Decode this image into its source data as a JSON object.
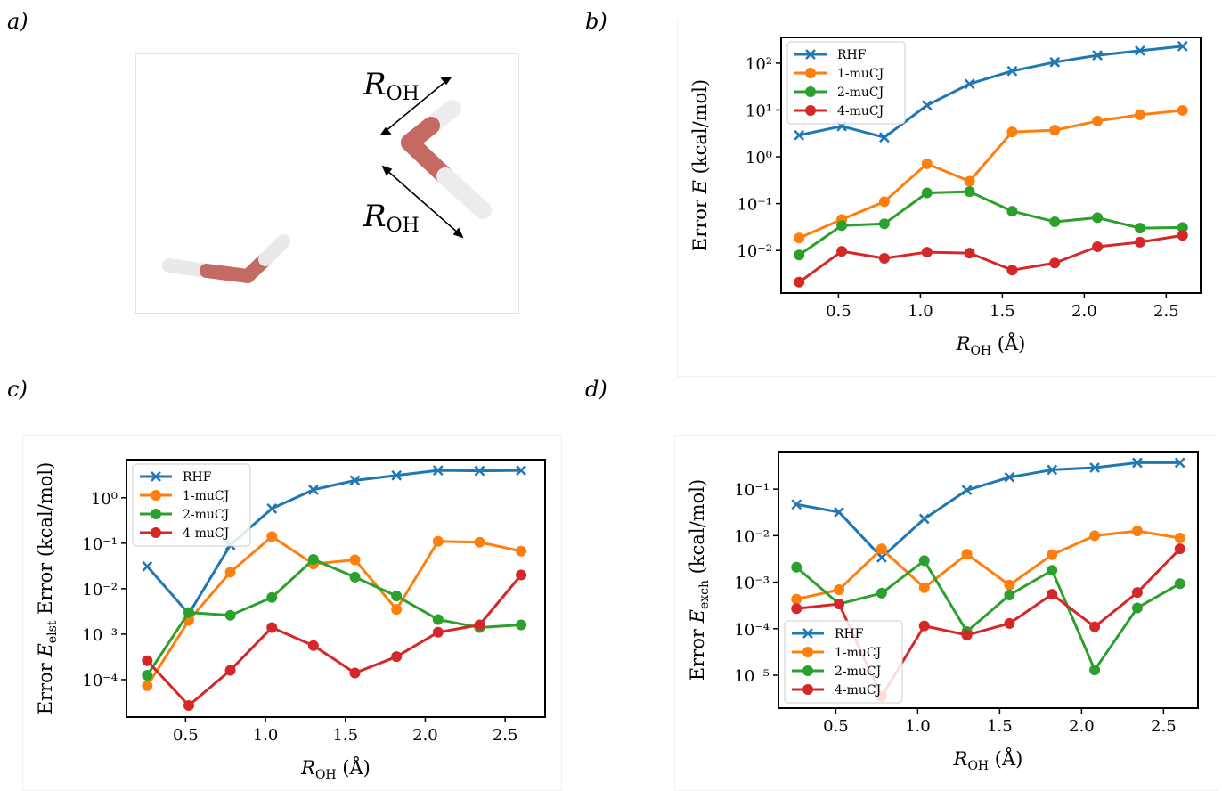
{
  "diagram": {
    "panel_label": "a)",
    "labels": [
      {
        "symbol": "R",
        "subscript": "OH"
      },
      {
        "symbol": "R",
        "subscript": "OH"
      }
    ]
  },
  "chart_data": [
    {
      "type": "line",
      "panel_label": "b)",
      "yscale": "log",
      "legend": "upper left",
      "x": [
        0.26,
        0.52,
        0.78,
        1.04,
        1.3,
        1.56,
        1.82,
        2.08,
        2.34,
        2.6
      ],
      "xlim": [
        0.15,
        2.71
      ],
      "xticks": [
        0.5,
        {
          "value": 1,
          "label": "1.0"
        },
        1.5,
        {
          "value": 2,
          "label": "2.0"
        },
        2.5
      ],
      "ylim": [
        0.00123,
        355
      ],
      "yticks": [
        {
          "value": 0.01,
          "label": "10⁻²"
        },
        {
          "value": 0.1,
          "label": "10⁻¹"
        },
        {
          "value": 1,
          "label": "10⁰"
        },
        {
          "value": 10,
          "label": "10¹"
        },
        {
          "value": 100,
          "label": "10²"
        }
      ],
      "xlabel": {
        "symbol": "R",
        "subscript": "OH",
        "suffix": " (Å)"
      },
      "ylabel": {
        "prefix": "Error ",
        "symbol": "E",
        "suffix": " (kcal/mol)"
      },
      "series": [
        {
          "name": "RHF",
          "color": "#1f77b4",
          "marker": "x",
          "values": [
            2.9,
            4.5,
            2.6,
            12.6,
            36,
            68,
            105,
            147,
            185,
            230
          ]
        },
        {
          "name": "1-muCJ",
          "color": "#ff7f0e",
          "marker": "o",
          "values": [
            0.0185,
            0.046,
            0.11,
            0.71,
            0.3,
            3.4,
            3.7,
            5.8,
            7.9,
            9.8
          ]
        },
        {
          "name": "2-muCJ",
          "color": "#2ca02c",
          "marker": "o",
          "values": [
            0.008,
            0.034,
            0.037,
            0.17,
            0.18,
            0.069,
            0.041,
            0.05,
            0.03,
            0.031
          ]
        },
        {
          "name": "4-muCJ",
          "color": "#d62728",
          "marker": "o",
          "values": [
            0.0021,
            0.0096,
            0.0068,
            0.0092,
            0.0088,
            0.0038,
            0.0054,
            0.012,
            0.015,
            0.021
          ]
        }
      ]
    },
    {
      "type": "line",
      "panel_label": "c)",
      "yscale": "log",
      "legend": "upper left",
      "x": [
        0.26,
        0.52,
        0.78,
        1.04,
        1.3,
        1.56,
        1.82,
        2.08,
        2.34,
        2.6
      ],
      "xlim": [
        0.13,
        2.75
      ],
      "xticks": [
        0.5,
        {
          "value": 1,
          "label": "1.0"
        },
        1.5,
        {
          "value": 2,
          "label": "2.0"
        },
        2.5
      ],
      "ylim": [
        1.5e-05,
        6.9
      ],
      "yticks": [
        {
          "value": 0.0001,
          "label": "10⁻⁴"
        },
        {
          "value": 0.001,
          "label": "10⁻³"
        },
        {
          "value": 0.01,
          "label": "10⁻²"
        },
        {
          "value": 0.1,
          "label": "10⁻¹"
        },
        {
          "value": 1,
          "label": "10⁰"
        }
      ],
      "xlabel": {
        "symbol": "R",
        "subscript": "OH",
        "suffix": " (Å)"
      },
      "ylabel": {
        "prefix": "Error ",
        "symbol": "E",
        "subscript": "elst",
        "suffix": " Error (kcal/mol)"
      },
      "series": [
        {
          "name": "RHF",
          "color": "#1f77b4",
          "marker": "x",
          "values": [
            0.031,
            0.0028,
            0.091,
            0.58,
            1.5,
            2.4,
            3.1,
            4.0,
            3.9,
            4.0
          ]
        },
        {
          "name": "1-muCJ",
          "color": "#ff7f0e",
          "marker": "o",
          "values": [
            7.3e-05,
            0.002,
            0.023,
            0.14,
            0.035,
            0.043,
            0.0035,
            0.11,
            0.105,
            0.067
          ]
        },
        {
          "name": "2-muCJ",
          "color": "#2ca02c",
          "marker": "o",
          "values": [
            0.000125,
            0.003,
            0.0026,
            0.0064,
            0.044,
            0.018,
            0.0069,
            0.0021,
            0.0014,
            0.0016
          ]
        },
        {
          "name": "4-muCJ",
          "color": "#d62728",
          "marker": "o",
          "values": [
            0.00026,
            2.7e-05,
            0.00016,
            0.0014,
            0.00056,
            0.00014,
            0.00032,
            0.0011,
            0.0016,
            0.02
          ]
        }
      ]
    },
    {
      "type": "line",
      "panel_label": "d)",
      "yscale": "log",
      "legend": "lower left",
      "x": [
        0.26,
        0.52,
        0.78,
        1.04,
        1.3,
        1.56,
        1.82,
        2.08,
        2.34,
        2.6
      ],
      "xlim": [
        0.15,
        2.71
      ],
      "xticks": [
        0.5,
        {
          "value": 1,
          "label": "1.0"
        },
        1.5,
        {
          "value": 2,
          "label": "2.0"
        },
        2.5
      ],
      "ylim": [
        1.96e-06,
        0.64
      ],
      "yticks": [
        {
          "value": 1e-05,
          "label": "10⁻⁵"
        },
        {
          "value": 0.0001,
          "label": "10⁻⁴"
        },
        {
          "value": 0.001,
          "label": "10⁻³"
        },
        {
          "value": 0.01,
          "label": "10⁻²"
        },
        {
          "value": 0.1,
          "label": "10⁻¹"
        }
      ],
      "xlabel": {
        "symbol": "R",
        "subscript": "OH",
        "suffix": " (Å)"
      },
      "ylabel": {
        "prefix": "Error ",
        "symbol": "E",
        "subscript": "exch",
        "suffix": " (kcal/mol)"
      },
      "series": [
        {
          "name": "RHF",
          "color": "#1f77b4",
          "marker": "x",
          "values": [
            0.047,
            0.032,
            0.0034,
            0.023,
            0.095,
            0.18,
            0.26,
            0.29,
            0.37,
            0.37
          ]
        },
        {
          "name": "1-muCJ",
          "color": "#ff7f0e",
          "marker": "o",
          "values": [
            0.00043,
            0.00069,
            0.0052,
            0.00076,
            0.004,
            0.00087,
            0.0039,
            0.01,
            0.0126,
            0.0089
          ]
        },
        {
          "name": "2-muCJ",
          "color": "#2ca02c",
          "marker": "o",
          "values": [
            0.0021,
            0.00034,
            0.00058,
            0.0029,
            8.7e-05,
            0.00053,
            0.0018,
            1.3e-05,
            0.00028,
            0.00093
          ]
        },
        {
          "name": "4-muCJ",
          "color": "#d62728",
          "marker": "o",
          "values": [
            0.00027,
            0.00034,
            3.5e-06,
            0.000115,
            7.3e-05,
            0.00013,
            0.00055,
            0.00011,
            0.0006,
            0.0052
          ]
        }
      ]
    }
  ]
}
